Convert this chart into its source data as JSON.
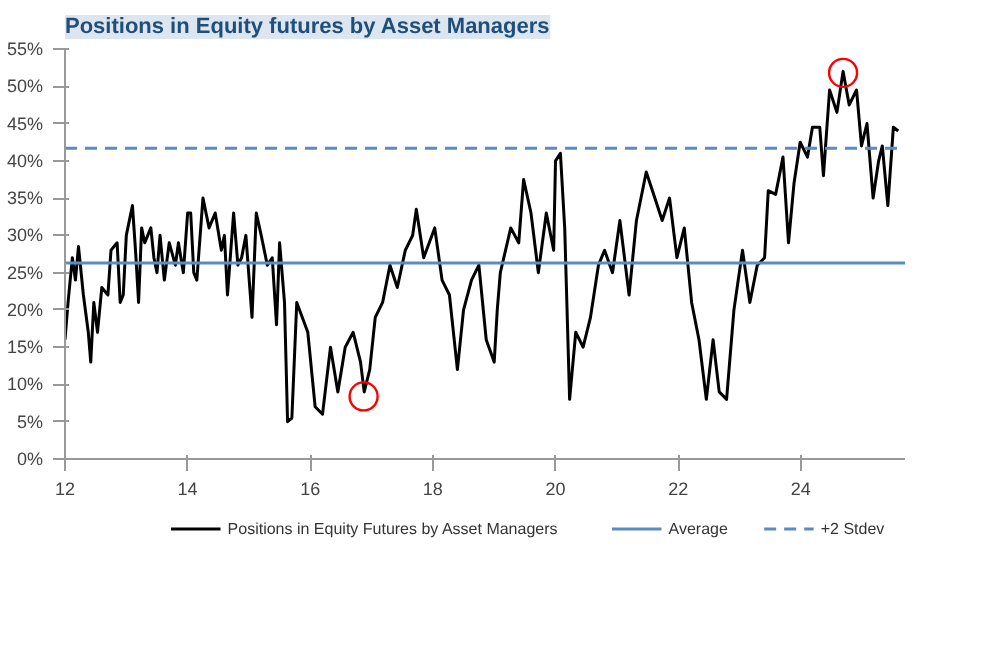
{
  "chart_data": {
    "type": "line",
    "title": "Positions in Equity futures by Asset Managers",
    "xlim": [
      12,
      25.7
    ],
    "xticks": [
      12,
      14,
      16,
      18,
      20,
      22,
      24
    ],
    "ylim": [
      0,
      55
    ],
    "yticks": [
      {
        "value": 0,
        "label": "0%"
      },
      {
        "value": 5,
        "label": "5%"
      },
      {
        "value": 10,
        "label": "10%"
      },
      {
        "value": 15,
        "label": "15%"
      },
      {
        "value": 20,
        "label": "20%"
      },
      {
        "value": 25,
        "label": "25%"
      },
      {
        "value": 30,
        "label": "30%"
      },
      {
        "value": 35,
        "label": "35%"
      },
      {
        "value": 40,
        "label": "40%"
      },
      {
        "value": 45,
        "label": "45%"
      },
      {
        "value": 50,
        "label": "50%"
      },
      {
        "value": 55,
        "label": "55%"
      }
    ],
    "grid": false,
    "legend": "bottom",
    "line_style": "solid",
    "series": [
      {
        "name": "Positions in Equity Futures by Asset Managers",
        "color": "#000000",
        "x": [
          12.0,
          12.05,
          12.12,
          12.17,
          12.22,
          12.3,
          12.38,
          12.42,
          12.47,
          12.53,
          12.6,
          12.7,
          12.75,
          12.85,
          12.9,
          12.95,
          13.0,
          13.1,
          13.15,
          13.2,
          13.25,
          13.3,
          13.4,
          13.45,
          13.5,
          13.55,
          13.62,
          13.7,
          13.8,
          13.85,
          13.93,
          14.0,
          14.05,
          14.1,
          14.15,
          14.25,
          14.35,
          14.45,
          14.55,
          14.6,
          14.65,
          14.75,
          14.82,
          14.88,
          14.95,
          15.05,
          15.12,
          15.2,
          15.3,
          15.38,
          15.45,
          15.5,
          15.58,
          15.63,
          15.7,
          15.78,
          15.96,
          16.08,
          16.2,
          16.33,
          16.45,
          16.57,
          16.7,
          16.82,
          16.88,
          16.97,
          17.06,
          17.18,
          17.3,
          17.42,
          17.55,
          17.67,
          17.73,
          17.85,
          18.03,
          18.15,
          18.27,
          18.4,
          18.5,
          18.63,
          18.75,
          18.87,
          19.0,
          19.05,
          19.1,
          19.27,
          19.4,
          19.48,
          19.6,
          19.72,
          19.85,
          19.97,
          20.0,
          20.08,
          20.15,
          20.23,
          20.33,
          20.45,
          20.57,
          20.7,
          20.8,
          20.93,
          21.05,
          21.2,
          21.32,
          21.48,
          21.62,
          21.74,
          21.86,
          21.98,
          22.1,
          22.22,
          22.34,
          22.46,
          22.57,
          22.67,
          22.79,
          22.91,
          23.05,
          23.17,
          23.29,
          23.41,
          23.47,
          23.59,
          23.71,
          23.8,
          23.89,
          23.99,
          24.11,
          24.19,
          24.31,
          24.37,
          24.47,
          24.59,
          24.69,
          24.79,
          24.91,
          24.99,
          25.08,
          25.18,
          25.27,
          25.33,
          25.42,
          25.51,
          25.59
        ],
        "values": [
          16,
          21,
          27,
          24,
          28.5,
          22,
          17,
          13,
          21,
          17,
          23,
          22,
          28,
          29,
          21,
          22,
          30,
          34,
          28,
          21,
          31,
          29,
          31,
          27,
          25,
          30,
          24,
          29,
          26,
          29,
          25,
          33,
          33,
          25,
          24,
          35,
          31,
          33,
          28,
          30,
          22,
          33,
          26,
          27,
          30,
          19,
          33,
          30,
          26,
          27,
          18,
          29,
          21,
          5,
          5.5,
          21,
          17,
          7,
          6,
          15,
          9,
          15,
          17,
          13,
          9,
          12,
          19,
          21,
          26,
          23,
          28,
          30,
          33.5,
          27,
          31,
          24,
          22,
          12,
          20,
          24,
          26,
          16,
          13,
          20,
          25,
          31,
          29,
          37.5,
          33,
          25,
          33,
          28,
          40,
          41,
          31,
          8,
          17,
          15,
          19,
          26,
          28,
          25,
          32,
          22,
          32,
          38.5,
          35,
          32,
          35,
          27,
          31,
          21,
          16,
          8,
          16,
          9,
          8,
          20,
          28,
          21,
          26,
          27,
          36,
          35.5,
          40.5,
          29,
          37,
          42.5,
          40.5,
          44.5,
          44.5,
          38,
          49.5,
          46.5,
          52,
          47.5,
          49.5,
          42,
          45,
          35,
          40,
          42,
          34,
          44.5,
          44
        ]
      },
      {
        "color": "#ff0000",
        "type": "scatter",
        "marker": "circle",
        "x": [
          16.87,
          24.69
        ],
        "values": [
          8.4,
          51.8
        ]
      }
    ],
    "ref_lines": [
      {
        "axis": "y",
        "value": 26.3,
        "label": "Average",
        "color": "#5b8cc1",
        "line_style": "solid"
      },
      {
        "axis": "y",
        "value": 41.7,
        "label": "+2 Stdev",
        "color": "#5b8cc1",
        "line_style": "dashed"
      }
    ]
  }
}
